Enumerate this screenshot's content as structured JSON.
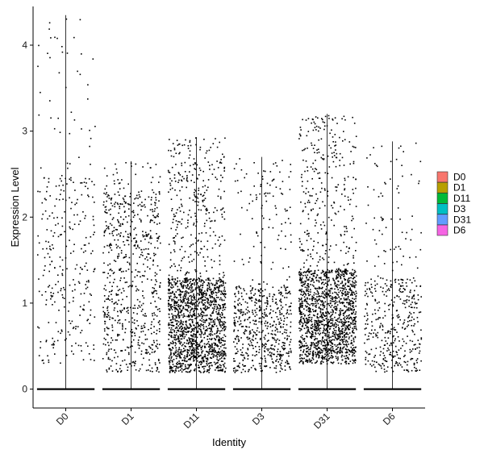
{
  "chart_data": {
    "type": "violin-jitter",
    "title": "",
    "xlabel": "Identity",
    "ylabel": "Expression Level",
    "categories": [
      "D0",
      "D1",
      "D11",
      "D3",
      "D31",
      "D6"
    ],
    "ylim": [
      -0.22,
      4.45
    ],
    "yticks": [
      0,
      1,
      2,
      3,
      4
    ],
    "legend": {
      "position": "right",
      "entries": [
        {
          "label": "D0",
          "color": "#F8766D"
        },
        {
          "label": "D1",
          "color": "#B79F00"
        },
        {
          "label": "D11",
          "color": "#00BA38"
        },
        {
          "label": "D3",
          "color": "#00BFC4"
        },
        {
          "label": "D31",
          "color": "#619CFF"
        },
        {
          "label": "D6",
          "color": "#F564E3"
        }
      ]
    },
    "series": [
      {
        "name": "D0",
        "max": 4.35,
        "jitter_points_nonzero": 320,
        "dense_low": 0.3,
        "dense_high": 2.5
      },
      {
        "name": "D1",
        "max": 2.65,
        "jitter_points_nonzero": 700,
        "dense_low": 0.2,
        "dense_high": 2.3
      },
      {
        "name": "D11",
        "max": 2.93,
        "jitter_points_nonzero": 1800,
        "dense_low": 0.2,
        "dense_high": 1.3
      },
      {
        "name": "D3",
        "max": 2.7,
        "jitter_points_nonzero": 650,
        "dense_low": 0.2,
        "dense_high": 1.2
      },
      {
        "name": "D31",
        "max": 3.2,
        "jitter_points_nonzero": 1700,
        "dense_low": 0.3,
        "dense_high": 1.4
      },
      {
        "name": "D6",
        "max": 2.88,
        "jitter_points_nonzero": 450,
        "dense_low": 0.2,
        "dense_high": 1.3
      }
    ],
    "grid": false
  }
}
